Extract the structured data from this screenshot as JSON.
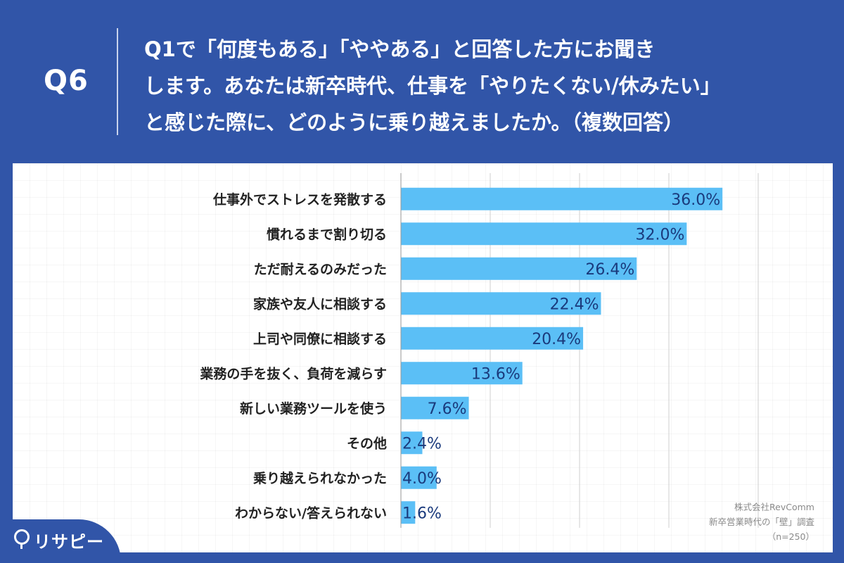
{
  "header": {
    "question_number": "Q6",
    "question_lines": [
      "Q1で「何度もある」「ややある」と回答した方にお聞き",
      "します。あなたは新卒時代、仕事を「やりたくない/休みたい」",
      "と感じた際に、どのように乗り越えましたか。（複数回答）"
    ]
  },
  "chart_data": {
    "type": "bar",
    "orientation": "horizontal",
    "categories": [
      "仕事外でストレスを発散する",
      "慣れるまで割り切る",
      "ただ耐えるのみだった",
      "家族や友人に相談する",
      "上司や同僚に相談する",
      "業務の手を抜く、負荷を減らす",
      "新しい業務ツールを使う",
      "その他",
      "乗り越えられなかった",
      "わからない/答えられない"
    ],
    "values": [
      36.0,
      32.0,
      26.4,
      22.4,
      20.4,
      13.6,
      7.6,
      2.4,
      4.0,
      1.6
    ],
    "value_labels": [
      "36.0%",
      "32.0%",
      "26.4%",
      "22.4%",
      "20.4%",
      "13.6%",
      "7.6%",
      "2.4%",
      "4.0%",
      "1.6%"
    ],
    "xlim": [
      0,
      40
    ],
    "grid_values": [
      10,
      20,
      30,
      40
    ],
    "grid": true,
    "legend": "none",
    "colors": {
      "bar": "#5bbff6",
      "value_label": "#1a3a7c",
      "category_label": "#222222",
      "grid": "#cfcfcf"
    }
  },
  "credit": {
    "lines": [
      "株式会社RevComm",
      "新卒営業時代の「壁」調査",
      "（n=250）"
    ]
  },
  "logo": {
    "text": "リサピー"
  },
  "colors": {
    "header_bg": "#3155a8",
    "panel_bg": "#ffffff"
  }
}
